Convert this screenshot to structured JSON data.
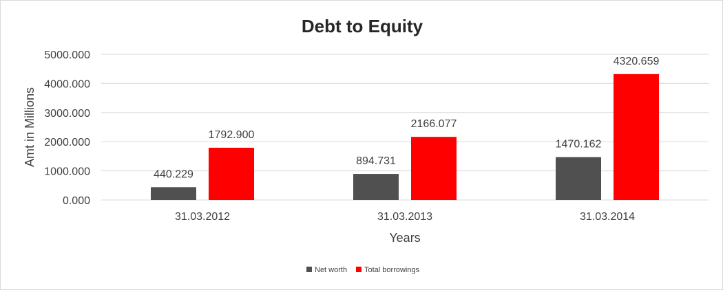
{
  "chart_data": {
    "type": "bar",
    "title": "Debt to Equity",
    "xlabel": "Years",
    "ylabel": "Amt in Millions",
    "categories": [
      "31.03.2012",
      "31.03.2013",
      "31.03.2014"
    ],
    "series": [
      {
        "name": "Net worth",
        "values": [
          440.229,
          894.731,
          1470.162
        ],
        "labels": [
          "440.229",
          "894.731",
          "1470.162"
        ],
        "color": "#505050"
      },
      {
        "name": "Total borrowings",
        "values": [
          1792.9,
          2166.077,
          4320.659
        ],
        "labels": [
          "1792.900",
          "2166.077",
          "4320.659"
        ],
        "color": "#ff0000"
      }
    ],
    "ylim": [
      0,
      5000
    ],
    "yticks": [
      "0.000",
      "1000.000",
      "2000.000",
      "3000.000",
      "4000.000",
      "5000.000"
    ],
    "grid": true,
    "legend_position": "bottom"
  }
}
